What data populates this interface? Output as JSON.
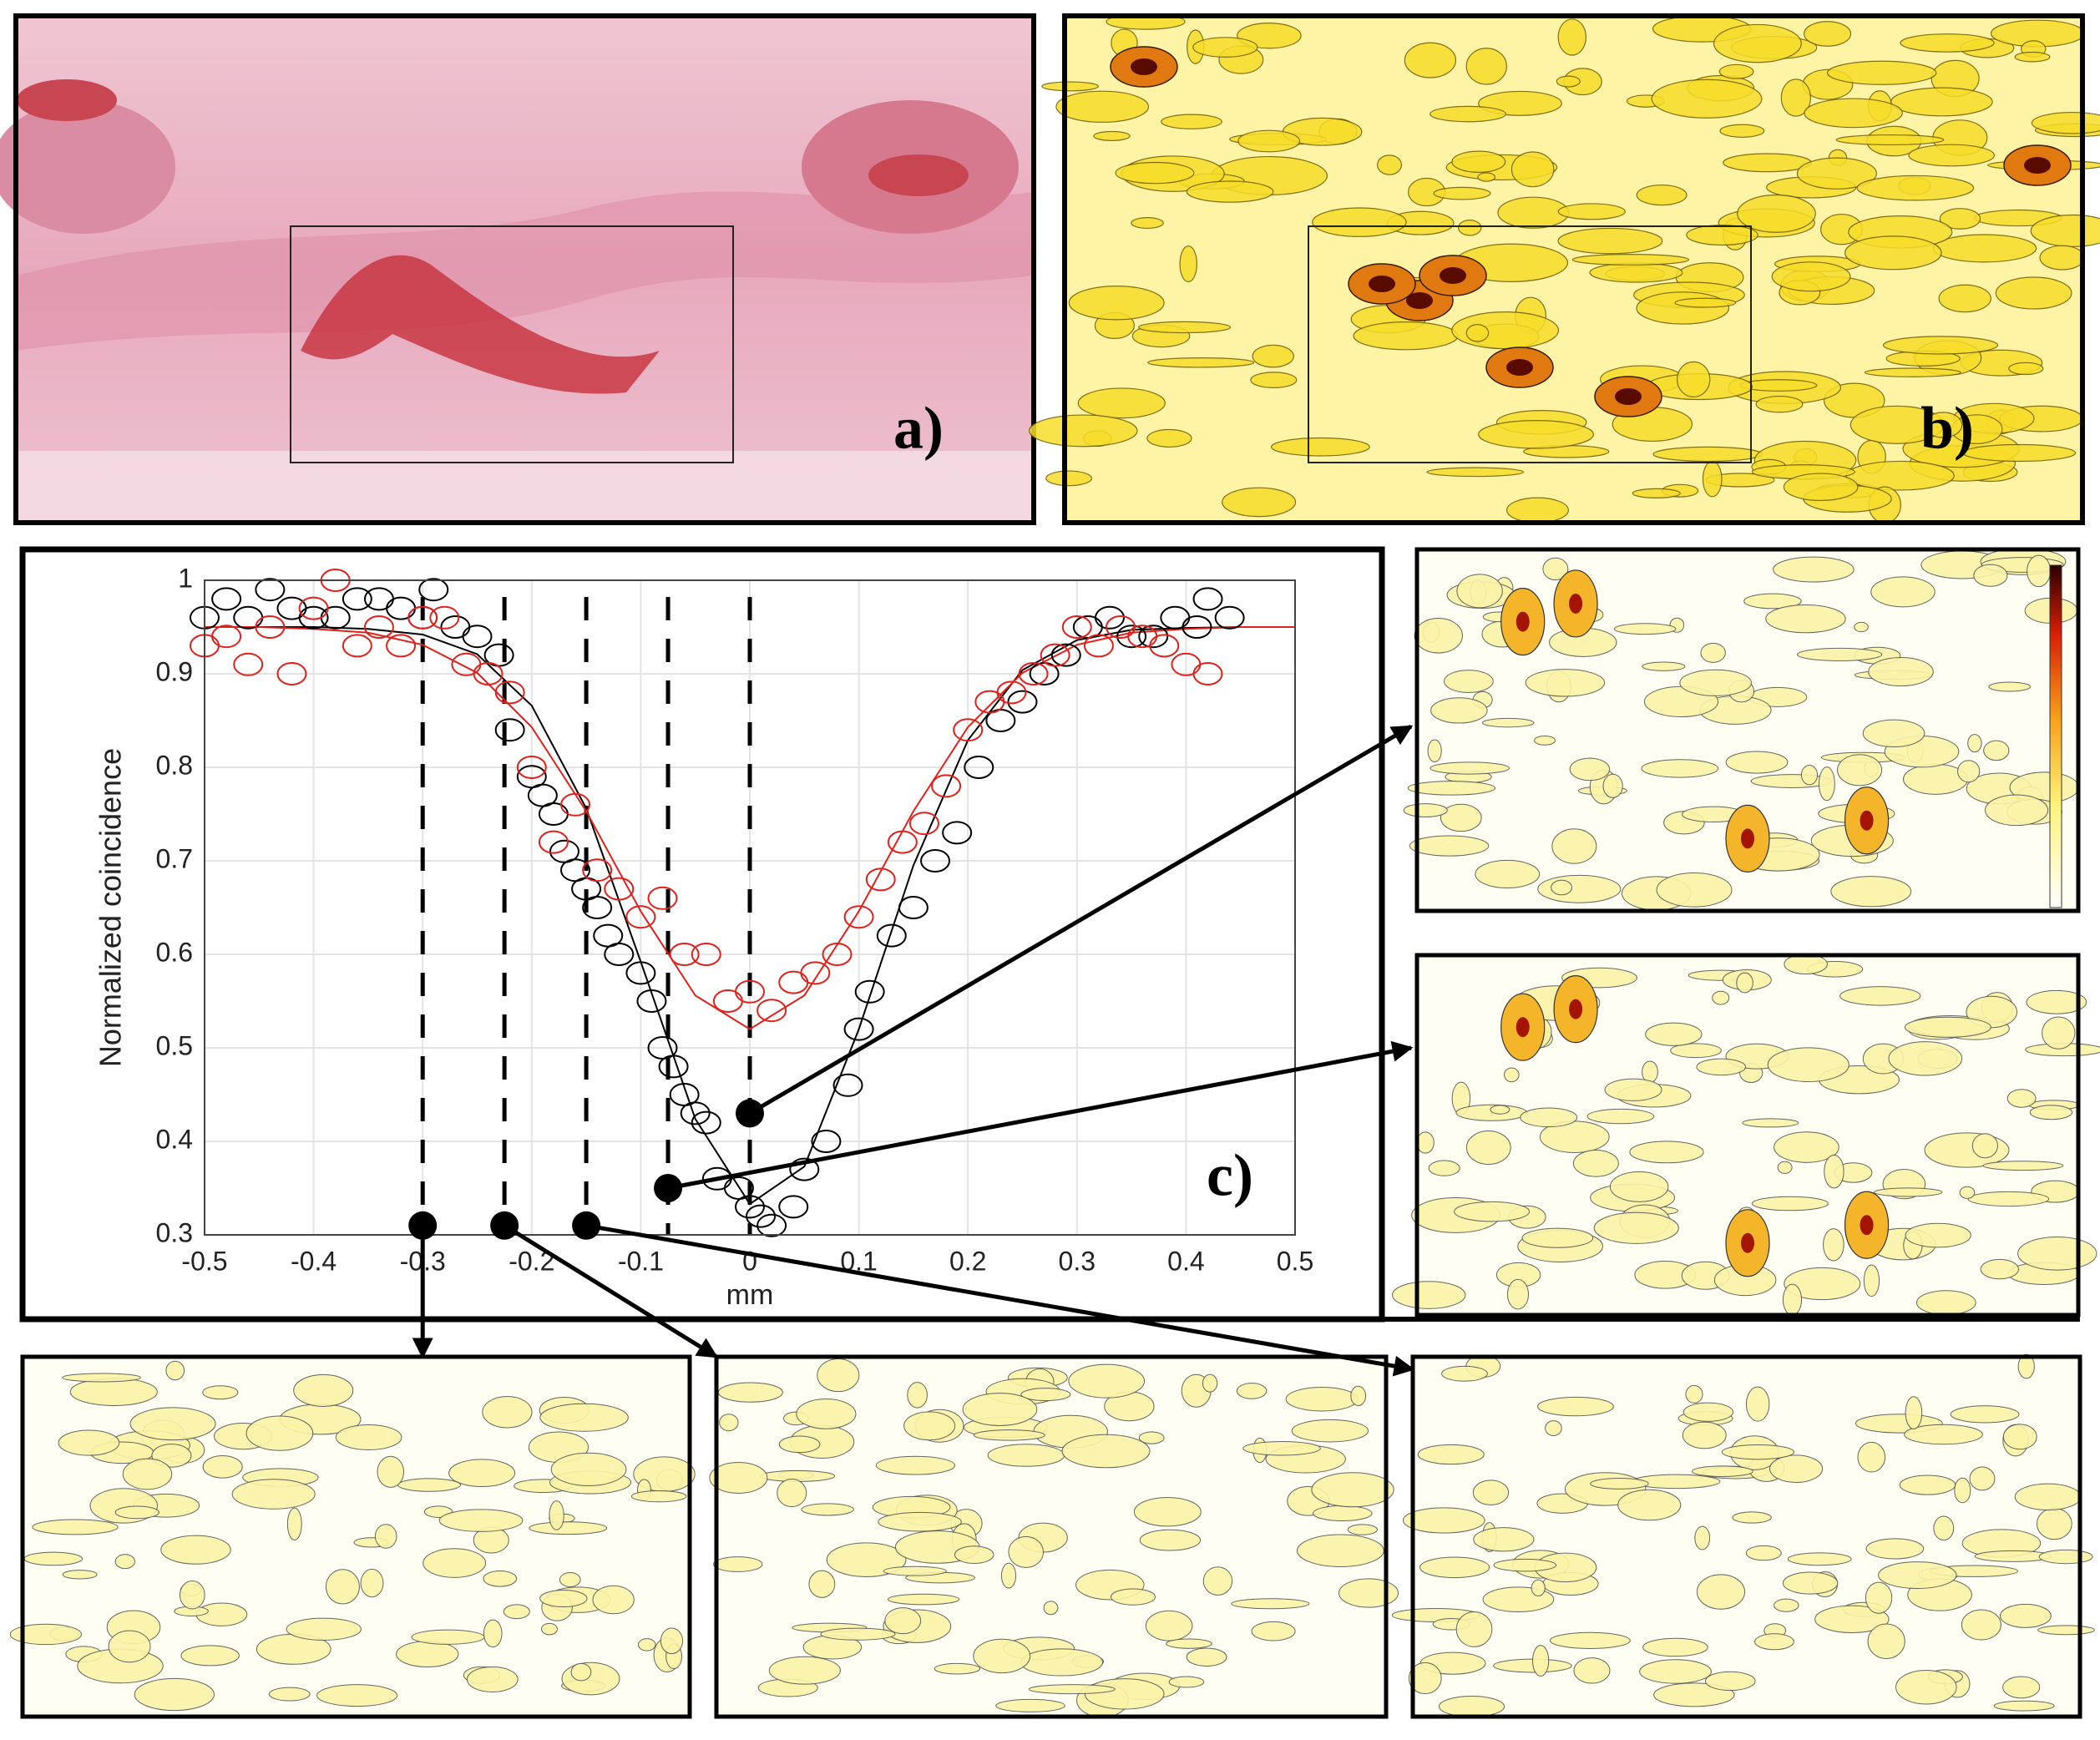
{
  "panel_labels": {
    "a": "a)",
    "b": "b)"
  },
  "chart_data": {
    "type": "scatter",
    "annotation": "c)",
    "xlabel": "mm",
    "ylabel": "Normalized coincidence",
    "xlim": [
      -0.5,
      0.5
    ],
    "ylim": [
      0.3,
      1
    ],
    "xticks": [
      -0.5,
      -0.4,
      -0.3,
      -0.2,
      -0.1,
      0,
      0.1,
      0.2,
      0.3,
      0.4,
      0.5
    ],
    "yticks": [
      0.3,
      0.4,
      0.5,
      0.6,
      0.7,
      0.8,
      0.9,
      1
    ],
    "grid": true,
    "series": [
      {
        "color": "#000000",
        "x": [
          -0.5,
          -0.48,
          -0.46,
          -0.44,
          -0.42,
          -0.4,
          -0.38,
          -0.36,
          -0.34,
          -0.32,
          -0.3,
          -0.29,
          -0.27,
          -0.25,
          -0.23,
          -0.22,
          -0.2,
          -0.19,
          -0.18,
          -0.17,
          -0.16,
          -0.15,
          -0.14,
          -0.13,
          -0.12,
          -0.1,
          -0.09,
          -0.08,
          -0.07,
          -0.06,
          -0.05,
          -0.04,
          -0.03,
          -0.01,
          0,
          0.01,
          0.02,
          0.04,
          0.05,
          0.07,
          0.09,
          0.1,
          0.11,
          0.13,
          0.15,
          0.17,
          0.19,
          0.21,
          0.23,
          0.25,
          0.27,
          0.29,
          0.31,
          0.33,
          0.35,
          0.37,
          0.39,
          0.41,
          0.42,
          0.44
        ],
        "values": [
          0.96,
          0.98,
          0.96,
          0.99,
          0.97,
          0.96,
          0.96,
          0.98,
          0.98,
          0.97,
          0.96,
          0.99,
          0.95,
          0.94,
          0.92,
          0.84,
          0.79,
          0.77,
          0.75,
          0.71,
          0.69,
          0.67,
          0.65,
          0.62,
          0.6,
          0.58,
          0.55,
          0.5,
          0.48,
          0.45,
          0.43,
          0.42,
          0.36,
          0.35,
          0.33,
          0.32,
          0.31,
          0.33,
          0.37,
          0.4,
          0.46,
          0.52,
          0.56,
          0.62,
          0.65,
          0.7,
          0.73,
          0.8,
          0.85,
          0.87,
          0.9,
          0.92,
          0.95,
          0.96,
          0.94,
          0.94,
          0.96,
          0.95,
          0.98,
          0.96
        ]
      },
      {
        "color": "#e0201a",
        "x": [
          -0.5,
          -0.48,
          -0.46,
          -0.44,
          -0.42,
          -0.4,
          -0.38,
          -0.36,
          -0.34,
          -0.32,
          -0.3,
          -0.28,
          -0.26,
          -0.24,
          -0.22,
          -0.2,
          -0.18,
          -0.16,
          -0.14,
          -0.12,
          -0.1,
          -0.08,
          -0.06,
          -0.04,
          -0.02,
          0,
          0.02,
          0.04,
          0.06,
          0.08,
          0.1,
          0.12,
          0.14,
          0.16,
          0.18,
          0.2,
          0.22,
          0.24,
          0.26,
          0.28,
          0.3,
          0.32,
          0.34,
          0.36,
          0.38,
          0.4,
          0.42
        ],
        "values": [
          0.93,
          0.94,
          0.91,
          0.95,
          0.9,
          0.97,
          1.0,
          0.93,
          0.95,
          0.93,
          0.96,
          0.96,
          0.91,
          0.9,
          0.88,
          0.8,
          0.72,
          0.76,
          0.69,
          0.67,
          0.64,
          0.66,
          0.6,
          0.6,
          0.55,
          0.56,
          0.54,
          0.57,
          0.58,
          0.6,
          0.64,
          0.68,
          0.72,
          0.74,
          0.78,
          0.84,
          0.87,
          0.88,
          0.9,
          0.92,
          0.95,
          0.93,
          0.95,
          0.94,
          0.93,
          0.91,
          0.9
        ]
      }
    ],
    "fits": [
      {
        "color": "#000000",
        "x": [
          -0.5,
          -0.45,
          -0.4,
          -0.35,
          -0.3,
          -0.25,
          -0.2,
          -0.15,
          -0.1,
          -0.05,
          0,
          0.05,
          0.1,
          0.15,
          0.2,
          0.25,
          0.3,
          0.35,
          0.4,
          0.45,
          0.5
        ],
        "values": [
          0.95,
          0.95,
          0.95,
          0.948,
          0.942,
          0.921,
          0.866,
          0.756,
          0.592,
          0.424,
          0.333,
          0.373,
          0.52,
          0.695,
          0.829,
          0.904,
          0.936,
          0.947,
          0.949,
          0.95,
          0.95
        ]
      },
      {
        "color": "#e0201a",
        "x": [
          -0.5,
          -0.45,
          -0.4,
          -0.35,
          -0.3,
          -0.25,
          -0.2,
          -0.15,
          -0.1,
          -0.05,
          0,
          0.05,
          0.1,
          0.15,
          0.2,
          0.25,
          0.3,
          0.35,
          0.4,
          0.45,
          0.5
        ],
        "values": [
          0.95,
          0.95,
          0.948,
          0.944,
          0.931,
          0.901,
          0.843,
          0.753,
          0.646,
          0.556,
          0.52,
          0.556,
          0.646,
          0.753,
          0.843,
          0.901,
          0.931,
          0.944,
          0.948,
          0.95,
          0.95
        ]
      }
    ],
    "vlines": [
      -0.3,
      -0.225,
      -0.15,
      -0.075,
      0
    ],
    "markers": {
      "x": [
        0,
        -0.075,
        -0.3,
        -0.225,
        -0.15
      ],
      "values": [
        0.43,
        0.35,
        0.31,
        0.31,
        0.31
      ]
    }
  }
}
